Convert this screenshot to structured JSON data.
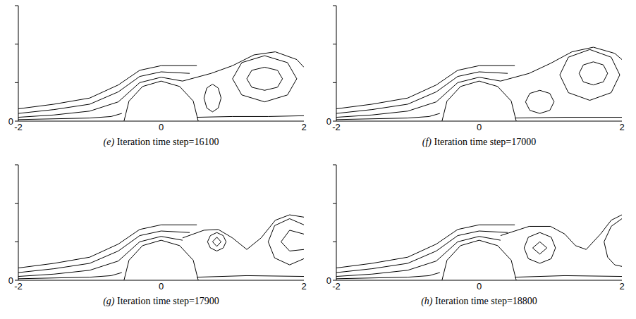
{
  "chart_data": [
    {
      "type": "contour",
      "label": "(e)",
      "caption": "Iteration time step=16100",
      "xlim": [
        -2,
        2
      ],
      "xticks": [
        -2,
        0,
        2
      ],
      "ylim": [
        0,
        1.5
      ],
      "yticks": [
        0
      ],
      "y_minor_ticks": [
        0.5,
        1,
        1.5
      ],
      "color": "#000000",
      "contours": [
        [
          [
            -2,
            0.05
          ],
          [
            -1.5,
            0.08
          ],
          [
            -1,
            0.13
          ],
          [
            -0.6,
            0.25
          ],
          [
            -0.3,
            0.5
          ],
          [
            0,
            0.57
          ],
          [
            0.3,
            0.52
          ]
        ],
        [
          [
            -2,
            0.1
          ],
          [
            -1.5,
            0.15
          ],
          [
            -1,
            0.22
          ],
          [
            -0.6,
            0.38
          ],
          [
            -0.3,
            0.58
          ],
          [
            0,
            0.64
          ],
          [
            0.4,
            0.62
          ]
        ],
        [
          [
            -2,
            0.16
          ],
          [
            -1.5,
            0.22
          ],
          [
            -1,
            0.3
          ],
          [
            -0.6,
            0.47
          ],
          [
            -0.3,
            0.66
          ],
          [
            0,
            0.72
          ],
          [
            0.5,
            0.72
          ]
        ],
        [
          [
            -2,
            0.02
          ],
          [
            -1,
            0.04
          ],
          [
            -0.7,
            0.06
          ],
          [
            -0.55,
            0.1
          ]
        ],
        [
          [
            -0.52,
            0
          ],
          [
            -0.45,
            0.26
          ],
          [
            -0.26,
            0.45
          ],
          [
            0,
            0.52
          ],
          [
            0.26,
            0.45
          ],
          [
            0.45,
            0.26
          ],
          [
            0.52,
            0
          ]
        ],
        [
          [
            0.3,
            0.52
          ],
          [
            0.7,
            0.62
          ],
          [
            1.0,
            0.72
          ],
          [
            1.3,
            0.86
          ],
          [
            1.6,
            0.9
          ],
          [
            1.9,
            0.8
          ],
          [
            2,
            0.7
          ]
        ],
        [
          [
            1.9,
            0.55
          ],
          [
            1.77,
            0.76
          ],
          [
            1.45,
            0.85
          ],
          [
            1.13,
            0.76
          ],
          [
            1.0,
            0.55
          ],
          [
            1.13,
            0.34
          ],
          [
            1.45,
            0.25
          ],
          [
            1.77,
            0.34
          ],
          [
            1.9,
            0.55
          ]
        ],
        [
          [
            1.7,
            0.55
          ],
          [
            1.63,
            0.66
          ],
          [
            1.45,
            0.7
          ],
          [
            1.27,
            0.66
          ],
          [
            1.2,
            0.55
          ],
          [
            1.27,
            0.44
          ],
          [
            1.45,
            0.4
          ],
          [
            1.63,
            0.44
          ],
          [
            1.7,
            0.55
          ]
        ],
        [
          [
            0.84,
            0.3
          ],
          [
            0.8,
            0.43
          ],
          [
            0.72,
            0.48
          ],
          [
            0.64,
            0.43
          ],
          [
            0.6,
            0.3
          ],
          [
            0.64,
            0.17
          ],
          [
            0.72,
            0.12
          ],
          [
            0.8,
            0.17
          ],
          [
            0.84,
            0.3
          ]
        ],
        [
          [
            0.5,
            0.05
          ],
          [
            1,
            0.06
          ],
          [
            1.5,
            0.06
          ],
          [
            2,
            0.07
          ]
        ]
      ]
    },
    {
      "type": "contour",
      "label": "(f)",
      "caption": "Iteration time step=17000",
      "xlim": [
        -2,
        2
      ],
      "xticks": [
        -2,
        0,
        2
      ],
      "ylim": [
        0,
        1.5
      ],
      "yticks": [
        0
      ],
      "y_minor_ticks": [
        0.5,
        1,
        1.5
      ],
      "color": "#000000",
      "contours": [
        [
          [
            -2,
            0.05
          ],
          [
            -1.5,
            0.08
          ],
          [
            -1,
            0.13
          ],
          [
            -0.6,
            0.25
          ],
          [
            -0.3,
            0.5
          ],
          [
            0,
            0.57
          ],
          [
            0.3,
            0.52
          ]
        ],
        [
          [
            -2,
            0.1
          ],
          [
            -1.5,
            0.15
          ],
          [
            -1,
            0.22
          ],
          [
            -0.6,
            0.38
          ],
          [
            -0.3,
            0.58
          ],
          [
            0,
            0.64
          ],
          [
            0.4,
            0.62
          ]
        ],
        [
          [
            -2,
            0.16
          ],
          [
            -1.5,
            0.22
          ],
          [
            -1,
            0.3
          ],
          [
            -0.6,
            0.47
          ],
          [
            -0.3,
            0.66
          ],
          [
            0,
            0.72
          ],
          [
            0.5,
            0.72
          ]
        ],
        [
          [
            -2,
            0.02
          ],
          [
            -1,
            0.04
          ],
          [
            -0.7,
            0.06
          ],
          [
            -0.55,
            0.1
          ]
        ],
        [
          [
            -0.52,
            0
          ],
          [
            -0.45,
            0.26
          ],
          [
            -0.26,
            0.45
          ],
          [
            0,
            0.52
          ],
          [
            0.26,
            0.45
          ],
          [
            0.45,
            0.26
          ],
          [
            0.52,
            0
          ]
        ],
        [
          [
            0.3,
            0.52
          ],
          [
            0.7,
            0.62
          ],
          [
            1.0,
            0.75
          ],
          [
            1.3,
            0.9
          ],
          [
            1.6,
            0.96
          ],
          [
            1.9,
            0.88
          ],
          [
            2,
            0.8
          ]
        ],
        [
          [
            1.97,
            0.6
          ],
          [
            1.85,
            0.83
          ],
          [
            1.55,
            0.93
          ],
          [
            1.25,
            0.83
          ],
          [
            1.13,
            0.6
          ],
          [
            1.25,
            0.37
          ],
          [
            1.55,
            0.27
          ],
          [
            1.85,
            0.37
          ],
          [
            1.97,
            0.6
          ]
        ],
        [
          [
            1.8,
            0.62
          ],
          [
            1.74,
            0.73
          ],
          [
            1.6,
            0.77
          ],
          [
            1.46,
            0.73
          ],
          [
            1.4,
            0.62
          ],
          [
            1.46,
            0.51
          ],
          [
            1.6,
            0.47
          ],
          [
            1.74,
            0.51
          ],
          [
            1.8,
            0.62
          ]
        ],
        [
          [
            1.05,
            0.25
          ],
          [
            0.99,
            0.36
          ],
          [
            0.85,
            0.4
          ],
          [
            0.71,
            0.36
          ],
          [
            0.65,
            0.25
          ],
          [
            0.71,
            0.14
          ],
          [
            0.85,
            0.1
          ],
          [
            0.99,
            0.14
          ],
          [
            1.05,
            0.25
          ]
        ],
        [
          [
            0.5,
            0.04
          ],
          [
            1.2,
            0.05
          ],
          [
            2,
            0.05
          ]
        ]
      ]
    },
    {
      "type": "contour",
      "label": "(g)",
      "caption": "Iteration time step=17900",
      "xlim": [
        -2,
        2
      ],
      "xticks": [
        -2,
        0,
        2
      ],
      "ylim": [
        0,
        1.5
      ],
      "yticks": [
        0
      ],
      "y_minor_ticks": [
        0.5,
        1,
        1.5
      ],
      "color": "#000000",
      "contours": [
        [
          [
            -2,
            0.05
          ],
          [
            -1.5,
            0.08
          ],
          [
            -1,
            0.13
          ],
          [
            -0.6,
            0.25
          ],
          [
            -0.3,
            0.5
          ],
          [
            0,
            0.57
          ],
          [
            0.3,
            0.52
          ]
        ],
        [
          [
            -2,
            0.1
          ],
          [
            -1.5,
            0.15
          ],
          [
            -1,
            0.22
          ],
          [
            -0.6,
            0.38
          ],
          [
            -0.3,
            0.58
          ],
          [
            0,
            0.64
          ],
          [
            0.4,
            0.62
          ]
        ],
        [
          [
            -2,
            0.16
          ],
          [
            -1.5,
            0.22
          ],
          [
            -1,
            0.3
          ],
          [
            -0.6,
            0.47
          ],
          [
            -0.3,
            0.66
          ],
          [
            0,
            0.72
          ],
          [
            0.5,
            0.72
          ]
        ],
        [
          [
            -2,
            0.02
          ],
          [
            -1,
            0.04
          ],
          [
            -0.7,
            0.06
          ],
          [
            -0.55,
            0.1
          ]
        ],
        [
          [
            -0.52,
            0
          ],
          [
            -0.45,
            0.26
          ],
          [
            -0.26,
            0.45
          ],
          [
            0,
            0.52
          ],
          [
            0.26,
            0.45
          ],
          [
            0.45,
            0.26
          ],
          [
            0.52,
            0
          ]
        ],
        [
          [
            0.3,
            0.55
          ],
          [
            0.6,
            0.65
          ],
          [
            0.8,
            0.66
          ],
          [
            1.0,
            0.55
          ],
          [
            1.2,
            0.4
          ],
          [
            1.4,
            0.55
          ],
          [
            1.6,
            0.78
          ],
          [
            1.8,
            0.85
          ],
          [
            2,
            0.82
          ]
        ],
        [
          [
            0.91,
            0.5
          ],
          [
            0.87,
            0.58
          ],
          [
            0.78,
            0.62
          ],
          [
            0.69,
            0.58
          ],
          [
            0.65,
            0.5
          ],
          [
            0.69,
            0.42
          ],
          [
            0.78,
            0.38
          ],
          [
            0.87,
            0.42
          ],
          [
            0.91,
            0.5
          ]
        ],
        [
          [
            0.84,
            0.5
          ],
          [
            0.78,
            0.56
          ],
          [
            0.72,
            0.5
          ],
          [
            0.78,
            0.44
          ],
          [
            0.84,
            0.5
          ]
        ],
        [
          [
            2,
            0.72
          ],
          [
            1.8,
            0.8
          ],
          [
            1.59,
            0.71
          ],
          [
            1.5,
            0.5
          ],
          [
            1.59,
            0.29
          ],
          [
            1.8,
            0.2
          ],
          [
            2,
            0.28
          ]
        ],
        [
          [
            2,
            0.6
          ],
          [
            1.8,
            0.65
          ],
          [
            1.68,
            0.5
          ],
          [
            1.8,
            0.38
          ],
          [
            2,
            0.4
          ]
        ],
        [
          [
            0.5,
            0.04
          ],
          [
            1.2,
            0.06
          ],
          [
            2,
            0.05
          ]
        ]
      ]
    },
    {
      "type": "contour",
      "label": "(h)",
      "caption": "Iteration time step=18800",
      "xlim": [
        -2,
        2
      ],
      "xticks": [
        -2,
        0,
        2
      ],
      "ylim": [
        0,
        1.5
      ],
      "yticks": [
        0
      ],
      "y_minor_ticks": [
        0.5,
        1,
        1.5
      ],
      "color": "#000000",
      "contours": [
        [
          [
            -2,
            0.05
          ],
          [
            -1.5,
            0.08
          ],
          [
            -1,
            0.13
          ],
          [
            -0.6,
            0.25
          ],
          [
            -0.3,
            0.5
          ],
          [
            0,
            0.57
          ],
          [
            0.3,
            0.52
          ]
        ],
        [
          [
            -2,
            0.1
          ],
          [
            -1.5,
            0.15
          ],
          [
            -1,
            0.22
          ],
          [
            -0.6,
            0.38
          ],
          [
            -0.3,
            0.58
          ],
          [
            0,
            0.64
          ],
          [
            0.4,
            0.62
          ]
        ],
        [
          [
            -2,
            0.16
          ],
          [
            -1.5,
            0.22
          ],
          [
            -1,
            0.3
          ],
          [
            -0.6,
            0.47
          ],
          [
            -0.3,
            0.66
          ],
          [
            0,
            0.72
          ],
          [
            0.5,
            0.72
          ]
        ],
        [
          [
            -2,
            0.02
          ],
          [
            -1,
            0.04
          ],
          [
            -0.7,
            0.06
          ],
          [
            -0.55,
            0.1
          ]
        ],
        [
          [
            -0.52,
            0
          ],
          [
            -0.45,
            0.26
          ],
          [
            -0.26,
            0.45
          ],
          [
            0,
            0.52
          ],
          [
            0.26,
            0.45
          ],
          [
            0.45,
            0.26
          ],
          [
            0.52,
            0
          ]
        ],
        [
          [
            0.3,
            0.58
          ],
          [
            0.7,
            0.7
          ],
          [
            1.0,
            0.7
          ],
          [
            1.2,
            0.6
          ],
          [
            1.35,
            0.45
          ],
          [
            1.5,
            0.4
          ],
          [
            1.7,
            0.6
          ],
          [
            1.85,
            0.78
          ],
          [
            2,
            0.85
          ]
        ],
        [
          [
            1.07,
            0.42
          ],
          [
            1.01,
            0.56
          ],
          [
            0.85,
            0.62
          ],
          [
            0.69,
            0.56
          ],
          [
            0.63,
            0.42
          ],
          [
            0.69,
            0.28
          ],
          [
            0.85,
            0.22
          ],
          [
            1.01,
            0.28
          ],
          [
            1.07,
            0.42
          ]
        ],
        [
          [
            0.95,
            0.42
          ],
          [
            0.85,
            0.5
          ],
          [
            0.75,
            0.42
          ],
          [
            0.85,
            0.34
          ],
          [
            0.95,
            0.42
          ]
        ],
        [
          [
            2,
            0.8
          ],
          [
            1.85,
            0.7
          ],
          [
            1.75,
            0.5
          ],
          [
            1.8,
            0.3
          ],
          [
            1.9,
            0.2
          ],
          [
            2,
            0.18
          ]
        ],
        [
          [
            0.5,
            0.04
          ],
          [
            1.2,
            0.06
          ],
          [
            2,
            0.05
          ]
        ]
      ]
    }
  ]
}
